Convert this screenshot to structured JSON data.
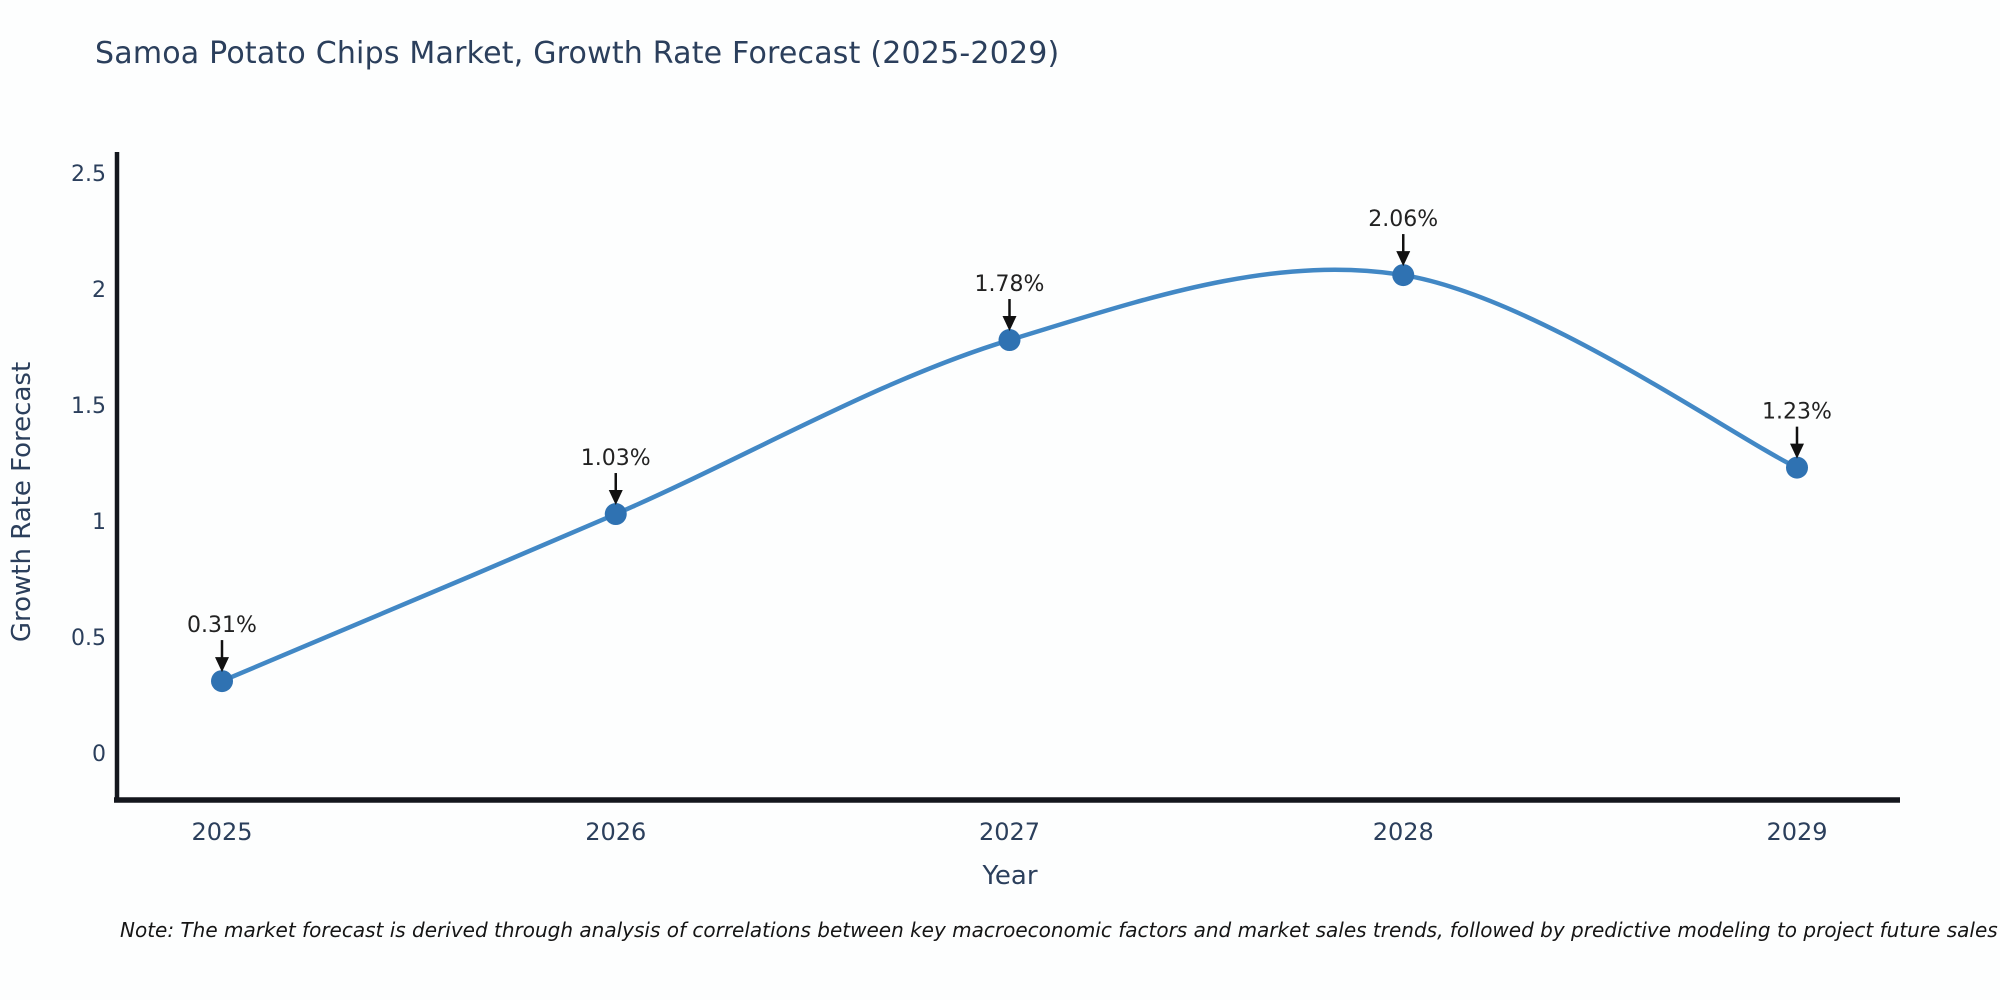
{
  "title": "Samoa Potato Chips Market, Growth Rate Forecast (2025-2029)",
  "note": "Note: The market forecast is derived through analysis of correlations between key macroeconomic factors and market sales trends, followed by predictive modeling to project future sales",
  "chart_data": {
    "type": "line",
    "line_shape": "spline",
    "x": [
      2025,
      2026,
      2027,
      2028,
      2029
    ],
    "values": [
      0.31,
      1.03,
      1.78,
      2.06,
      1.23
    ],
    "labels": [
      "0.31%",
      "1.03%",
      "1.78%",
      "2.06%",
      "1.23%"
    ],
    "xlabel": "Year",
    "ylabel": "Growth Rate Forecast",
    "yticks": [
      0,
      0.5,
      1,
      1.5,
      2,
      2.5
    ],
    "ylim": [
      -0.2,
      2.58
    ],
    "xlim": [
      2024.73,
      2029.26
    ],
    "grid": false,
    "legend": "none",
    "markers": true,
    "annotations": "arrow-to-point",
    "colors": {
      "line": "#4288c5",
      "marker": "#2f72b2",
      "axis": "#14171d",
      "axis_text": "#2b3f5c",
      "annotation_text": "#222222",
      "arrow": "#111111",
      "background": "#fdfefe"
    }
  }
}
